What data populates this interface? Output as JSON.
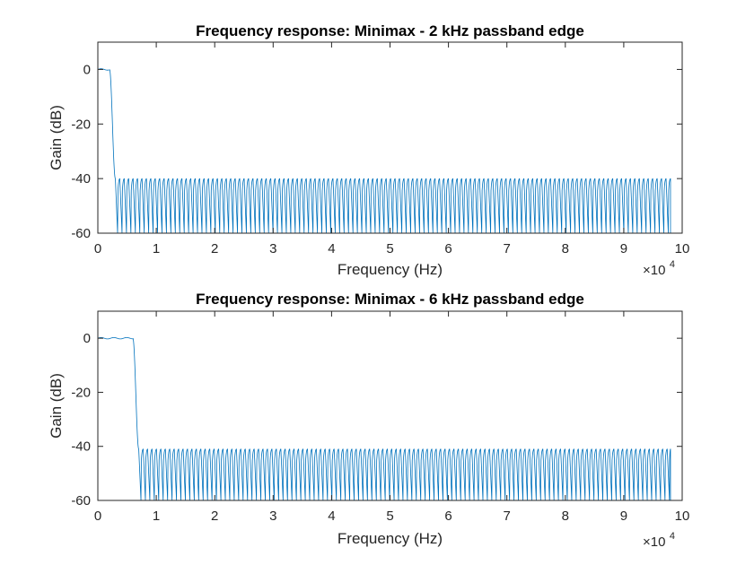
{
  "figure": {
    "background": "#ffffff",
    "axis_color": "#262626",
    "line_color": "#0072bd"
  },
  "chart_data": [
    {
      "type": "line",
      "title": "Frequency response: Minimax - 2 kHz passband edge",
      "xlabel": "Frequency (Hz)",
      "ylabel": "Gain (dB)",
      "xlim": [
        0,
        100000
      ],
      "ylim": [
        -60,
        10
      ],
      "xticks": [
        0,
        10000,
        20000,
        30000,
        40000,
        50000,
        60000,
        70000,
        80000,
        90000,
        100000
      ],
      "xtick_labels": [
        "0",
        "1",
        "2",
        "3",
        "4",
        "5",
        "6",
        "7",
        "8",
        "9",
        "10"
      ],
      "yticks": [
        -60,
        -40,
        -20,
        0
      ],
      "ytick_labels": [
        "-60",
        "-40",
        "-20",
        "0"
      ],
      "x_exponent_base": "×10",
      "x_exponent_power": "4",
      "box": true,
      "grid": false,
      "series": [
        {
          "color": "#0072bd",
          "data_range_hz": [
            0,
            98000
          ],
          "passband_edge_hz": 2000,
          "stopband_edge_hz": 3000,
          "passband_gain_db": 0,
          "stopband_peak_db": -40,
          "null_floor_db": -60,
          "lobe_period_hz": 760
        }
      ]
    },
    {
      "type": "line",
      "title": "Frequency response: Minimax -  6 kHz passband edge",
      "xlabel": "Frequency (Hz)",
      "ylabel": "Gain (dB)",
      "xlim": [
        0,
        100000
      ],
      "ylim": [
        -60,
        10
      ],
      "xticks": [
        0,
        10000,
        20000,
        30000,
        40000,
        50000,
        60000,
        70000,
        80000,
        90000,
        100000
      ],
      "xtick_labels": [
        "0",
        "1",
        "2",
        "3",
        "4",
        "5",
        "6",
        "7",
        "8",
        "9",
        "10"
      ],
      "yticks": [
        -60,
        -40,
        -20,
        0
      ],
      "ytick_labels": [
        "-60",
        "-40",
        "-20",
        "0"
      ],
      "x_exponent_base": "×10",
      "x_exponent_power": "4",
      "box": true,
      "grid": false,
      "series": [
        {
          "color": "#0072bd",
          "data_range_hz": [
            0,
            98000
          ],
          "passband_edge_hz": 6000,
          "stopband_edge_hz": 7000,
          "passband_gain_db": 0,
          "stopband_peak_db": -41,
          "null_floor_db": -60,
          "lobe_period_hz": 760
        }
      ]
    }
  ]
}
